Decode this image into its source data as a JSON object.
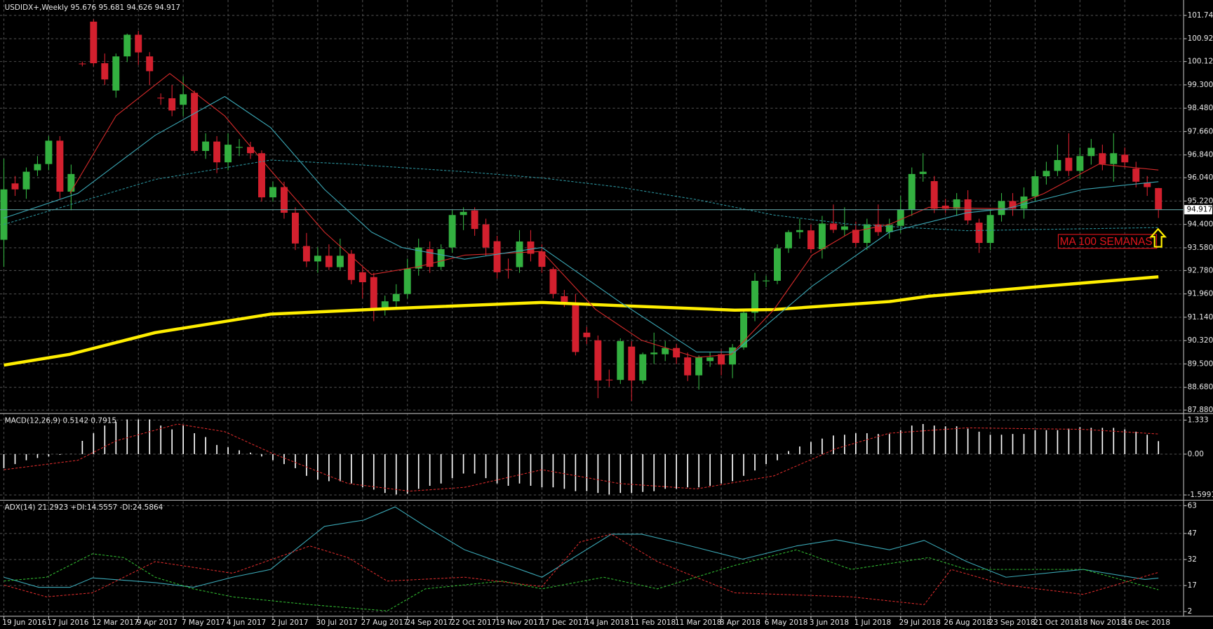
{
  "chart_data": {
    "type": "candlestick",
    "title": "USDIDX+,Weekly  95.676 95.681 94.626 94.917",
    "x_labels": [
      "19 Jun 2016",
      "17 Jul 2016",
      "12 Mar 2017",
      "9 Apr 2017",
      "7 May 2017",
      "4 Jun 2017",
      "2 Jul 2017",
      "30 Jul 2017",
      "27 Aug 2017",
      "24 Sep 2017",
      "22 Oct 2017",
      "19 Nov 2017",
      "17 Dec 2017",
      "14 Jan 2018",
      "11 Feb 2018",
      "11 Mar 2018",
      "8 Apr 2018",
      "6 May 2018",
      "3 Jun 2018",
      "1 Jul 2018",
      "29 Jul 2018",
      "26 Aug 2018",
      "23 Sep 2018",
      "21 Oct 2018",
      "18 Nov 2018",
      "16 Dec 2018"
    ],
    "ylim": [
      87.8,
      102.28
    ],
    "yticks": [
      {
        "value": 101.74,
        "label": "101.740"
      },
      {
        "value": 100.92,
        "label": "100.920"
      },
      {
        "value": 100.12,
        "label": "100.120"
      },
      {
        "value": 99.3,
        "label": "99.300"
      },
      {
        "value": 98.48,
        "label": "98.480"
      },
      {
        "value": 97.66,
        "label": "97.660"
      },
      {
        "value": 96.84,
        "label": "96.840"
      },
      {
        "value": 96.04,
        "label": "96.040"
      },
      {
        "value": 95.22,
        "label": "95.220"
      },
      {
        "value": 94.4,
        "label": "94.400"
      },
      {
        "value": 93.58,
        "label": "93.580"
      },
      {
        "value": 92.78,
        "label": "92.780"
      },
      {
        "value": 91.96,
        "label": "91.960"
      },
      {
        "value": 91.14,
        "label": "91.140"
      },
      {
        "value": 90.32,
        "label": "90.320"
      },
      {
        "value": 89.5,
        "label": "89.500"
      },
      {
        "value": 88.68,
        "label": "88.680"
      },
      {
        "value": 87.88,
        "label": "87.880"
      }
    ],
    "grid": true,
    "up_color": "#33b040",
    "down_color": "#d3202e",
    "candles": [
      [
        93.86,
        96.71,
        92.91,
        95.63
      ],
      [
        95.84,
        96.1,
        95.4,
        95.63
      ],
      [
        95.63,
        96.4,
        95.3,
        96.25
      ],
      [
        96.3,
        96.8,
        96.1,
        96.52
      ],
      [
        96.52,
        97.5,
        96.3,
        97.34
      ],
      [
        97.34,
        97.5,
        95.3,
        95.55
      ],
      [
        95.55,
        96.5,
        94.9,
        96.17
      ],
      [
        100.05,
        100.12,
        99.95,
        100.03
      ],
      [
        101.52,
        101.6,
        99.95,
        100.06
      ],
      [
        100.06,
        100.4,
        99.3,
        99.49
      ],
      [
        99.1,
        100.4,
        98.85,
        100.3
      ],
      [
        100.3,
        101.1,
        100.1,
        101.06
      ],
      [
        101.06,
        101.2,
        100.0,
        100.44
      ],
      [
        100.3,
        100.45,
        99.3,
        99.78
      ],
      [
        98.85,
        99.0,
        98.6,
        98.83
      ],
      [
        98.83,
        99.3,
        98.2,
        98.4
      ],
      [
        98.6,
        99.6,
        98.2,
        98.97
      ],
      [
        99.02,
        99.1,
        96.9,
        96.98
      ],
      [
        96.98,
        97.6,
        96.7,
        97.31
      ],
      [
        97.31,
        97.5,
        96.2,
        96.58
      ],
      [
        96.58,
        97.6,
        96.3,
        97.2
      ],
      [
        97.1,
        97.4,
        96.8,
        97.12
      ],
      [
        97.12,
        97.3,
        96.7,
        96.9
      ],
      [
        96.9,
        97.0,
        95.2,
        95.35
      ],
      [
        95.35,
        95.9,
        95.2,
        95.71
      ],
      [
        95.71,
        95.9,
        94.6,
        94.81
      ],
      [
        94.81,
        95.0,
        93.5,
        93.73
      ],
      [
        93.64,
        94.1,
        92.9,
        93.1
      ],
      [
        93.1,
        93.6,
        92.7,
        93.3
      ],
      [
        93.3,
        93.7,
        92.8,
        92.9
      ],
      [
        92.9,
        93.9,
        92.8,
        93.3
      ],
      [
        93.37,
        93.5,
        92.3,
        92.45
      ],
      [
        92.72,
        92.9,
        91.8,
        92.37
      ],
      [
        92.55,
        92.7,
        91.0,
        91.42
      ],
      [
        91.42,
        91.9,
        91.2,
        91.7
      ],
      [
        91.7,
        92.3,
        91.5,
        91.96
      ],
      [
        91.96,
        93.2,
        91.8,
        92.85
      ],
      [
        92.85,
        93.9,
        92.6,
        93.59
      ],
      [
        93.53,
        93.8,
        92.7,
        92.91
      ],
      [
        92.91,
        93.7,
        92.8,
        93.53
      ],
      [
        93.59,
        94.9,
        93.4,
        94.73
      ],
      [
        94.73,
        95.0,
        94.2,
        94.84
      ],
      [
        94.89,
        95.0,
        94.0,
        94.24
      ],
      [
        94.4,
        94.6,
        93.3,
        93.59
      ],
      [
        93.81,
        94.0,
        92.5,
        92.72
      ],
      [
        92.83,
        93.2,
        92.5,
        92.81
      ],
      [
        92.9,
        94.2,
        92.7,
        93.8
      ],
      [
        93.8,
        94.2,
        93.1,
        93.37
      ],
      [
        93.45,
        93.7,
        92.7,
        92.91
      ],
      [
        92.83,
        92.9,
        91.8,
        91.96
      ],
      [
        91.88,
        92.1,
        91.5,
        91.68
      ],
      [
        91.63,
        91.96,
        89.8,
        89.92
      ],
      [
        90.6,
        90.8,
        90.2,
        90.44
      ],
      [
        90.33,
        90.5,
        88.3,
        88.92
      ],
      [
        88.95,
        89.3,
        88.7,
        88.94
      ],
      [
        88.94,
        90.4,
        88.8,
        90.3
      ],
      [
        90.11,
        90.3,
        88.2,
        88.92
      ],
      [
        88.92,
        89.9,
        88.8,
        89.84
      ],
      [
        89.84,
        90.6,
        89.5,
        89.9
      ],
      [
        89.84,
        90.3,
        89.6,
        90.06
      ],
      [
        90.06,
        90.2,
        89.5,
        89.73
      ],
      [
        89.73,
        89.9,
        88.9,
        89.1
      ],
      [
        89.1,
        89.8,
        88.6,
        89.73
      ],
      [
        89.6,
        89.9,
        89.4,
        89.73
      ],
      [
        89.84,
        90.0,
        89.1,
        89.48
      ],
      [
        89.48,
        90.2,
        89.0,
        90.08
      ],
      [
        90.08,
        91.4,
        90.0,
        91.3
      ],
      [
        91.3,
        92.7,
        91.0,
        92.42
      ],
      [
        92.42,
        92.6,
        92.2,
        92.43
      ],
      [
        92.42,
        93.7,
        92.3,
        93.56
      ],
      [
        93.56,
        94.2,
        93.4,
        94.13
      ],
      [
        94.13,
        94.6,
        93.9,
        94.2
      ],
      [
        94.19,
        94.4,
        93.4,
        93.53
      ],
      [
        93.53,
        94.7,
        93.2,
        94.43
      ],
      [
        94.43,
        95.1,
        94.1,
        94.21
      ],
      [
        94.21,
        95.0,
        94.0,
        94.33
      ],
      [
        94.21,
        94.5,
        93.6,
        93.75
      ],
      [
        93.75,
        94.6,
        93.5,
        94.4
      ],
      [
        94.4,
        95.1,
        94.0,
        94.13
      ],
      [
        94.13,
        94.6,
        93.9,
        94.38
      ],
      [
        94.35,
        95.4,
        94.1,
        94.92
      ],
      [
        94.92,
        96.4,
        94.7,
        96.17
      ],
      [
        96.17,
        96.9,
        95.9,
        96.25
      ],
      [
        95.92,
        96.1,
        94.8,
        94.95
      ],
      [
        95.06,
        95.3,
        94.8,
        94.95
      ],
      [
        94.95,
        95.5,
        94.7,
        95.28
      ],
      [
        95.28,
        95.6,
        94.4,
        94.54
      ],
      [
        94.46,
        94.6,
        93.4,
        93.75
      ],
      [
        93.75,
        94.9,
        93.5,
        94.73
      ],
      [
        94.73,
        95.5,
        94.5,
        95.22
      ],
      [
        95.22,
        95.5,
        94.7,
        94.95
      ],
      [
        94.95,
        95.7,
        94.6,
        95.38
      ],
      [
        95.38,
        96.3,
        95.2,
        96.09
      ],
      [
        96.09,
        96.6,
        95.8,
        96.28
      ],
      [
        96.28,
        97.2,
        96.1,
        96.66
      ],
      [
        96.74,
        97.6,
        96.1,
        96.28
      ],
      [
        96.28,
        97.1,
        96.0,
        96.8
      ],
      [
        96.8,
        97.4,
        96.5,
        97.09
      ],
      [
        96.9,
        97.2,
        96.3,
        96.52
      ],
      [
        96.52,
        97.6,
        95.9,
        96.9
      ],
      [
        96.85,
        97.1,
        96.4,
        96.58
      ],
      [
        96.36,
        96.6,
        95.7,
        95.9
      ],
      [
        95.87,
        96.1,
        95.4,
        95.71
      ],
      [
        95.676,
        95.681,
        94.626,
        94.917
      ]
    ],
    "last_price": 94.917,
    "last_price_color": "#5f9ea0",
    "series": [
      {
        "color": "#ffee00",
        "width": 4,
        "dash": false,
        "x": [
          0,
          5.9,
          13.5,
          23.8,
          34.2,
          48.0,
          54.9,
          65.2,
          68.7,
          79.0,
          82.5,
          92.8,
          103
        ],
        "values": [
          89.46,
          89.84,
          90.6,
          91.25,
          91.44,
          91.66,
          91.55,
          91.39,
          91.41,
          91.69,
          91.88,
          92.23,
          92.56
        ]
      },
      {
        "color": "#d42a2a",
        "width": 1,
        "dash": false,
        "x": [
          5.9,
          10.0,
          14.8,
          19.7,
          23.8,
          28.6,
          32.8,
          36.9,
          41.1,
          48.0,
          52.8,
          56.9,
          61.8,
          64.9,
          68.7,
          72.1,
          75.6,
          79.0,
          82.5,
          89.4,
          92.8,
          97.7,
          103
        ],
        "values": [
          95.49,
          98.21,
          99.7,
          98.21,
          96.3,
          94.13,
          92.64,
          92.91,
          93.32,
          93.45,
          91.41,
          90.33,
          89.73,
          89.84,
          91.41,
          93.32,
          94.13,
          94.4,
          95.0,
          94.95,
          95.49,
          96.52,
          96.31
        ]
      },
      {
        "color": "#3aa6b4",
        "width": 1,
        "dash": false,
        "x": [
          0,
          6.6,
          13.5,
          19.7,
          23.8,
          28.6,
          32.8,
          35.5,
          41.1,
          48.0,
          54.9,
          61.8,
          65.2,
          72.1,
          79.0,
          85.9,
          89.4,
          96.3,
          103
        ],
        "values": [
          94.62,
          95.49,
          97.53,
          98.89,
          97.8,
          95.63,
          94.13,
          93.59,
          93.18,
          93.59,
          91.69,
          89.92,
          89.92,
          92.23,
          94.13,
          94.81,
          94.95,
          95.63,
          95.9
        ]
      },
      {
        "color": "#2a8f99",
        "width": 1,
        "dash": true,
        "x": [
          0,
          13.5,
          23.8,
          30.7,
          41.1,
          48.0,
          54.9,
          61.8,
          68.7,
          75.6,
          85.9,
          103
        ],
        "values": [
          94.4,
          95.98,
          96.66,
          96.52,
          96.25,
          96.03,
          95.71,
          95.27,
          94.73,
          94.4,
          94.18,
          94.29
        ]
      }
    ],
    "annotation": "MA 100 SEMANAS",
    "indicators": [
      {
        "type": "macd",
        "title": "MACD(12,26,9) 0.5142 0.7915",
        "ylim": [
          -1.758,
          1.515
        ],
        "yticks": [
          1.333,
          {
            "value": 0,
            "label": "0.00"
          },
          -1.5991
        ],
        "histogram_color": "#ffffff",
        "histogram": [
          -0.55,
          -0.39,
          -0.24,
          -0.15,
          -0.09,
          -0.03,
          0.01,
          0.52,
          0.82,
          1.12,
          1.27,
          1.36,
          1.36,
          1.36,
          1.12,
          0.97,
          1.12,
          0.82,
          0.67,
          0.36,
          0.27,
          0.15,
          0.06,
          -0.09,
          -0.24,
          -0.39,
          -0.55,
          -0.85,
          -1.0,
          -1.06,
          -1.06,
          -1.15,
          -1.3,
          -1.39,
          -1.52,
          -1.58,
          -1.55,
          -1.36,
          -1.24,
          -1.15,
          -0.94,
          -0.76,
          -0.76,
          -0.94,
          -1.15,
          -1.24,
          -1.15,
          -1.24,
          -1.3,
          -1.3,
          -1.36,
          -1.45,
          -1.45,
          -1.52,
          -1.58,
          -1.52,
          -1.52,
          -1.48,
          -1.45,
          -1.36,
          -1.36,
          -1.3,
          -1.3,
          -1.24,
          -1.15,
          -1.06,
          -0.85,
          -0.64,
          -0.39,
          -0.24,
          0.12,
          0.3,
          0.48,
          0.61,
          0.73,
          0.76,
          0.82,
          0.82,
          0.79,
          0.79,
          0.94,
          1.12,
          1.18,
          1.12,
          1.09,
          1.09,
          1.0,
          0.88,
          0.76,
          0.76,
          0.79,
          0.79,
          0.94,
          0.94,
          0.94,
          1.0,
          1.06,
          1.03,
          1.03,
          1.03,
          0.97,
          0.88,
          0.76,
          0.51
        ],
        "series": [
          {
            "color": "#d42a2a",
            "width": 1,
            "dash": true,
            "x": [
              0,
              6.6,
              10.0,
              15.5,
              19.7,
              23.8,
              30.7,
              36.2,
              41.1,
              48.0,
              54.9,
              61.8,
              68.7,
              74.2,
              79.0,
              85.9,
              96.3,
              103
            ],
            "values": [
              -0.61,
              -0.24,
              0.52,
              1.18,
              0.88,
              0.06,
              -1.15,
              -1.45,
              -1.3,
              -0.61,
              -1.15,
              -1.36,
              -0.85,
              0.21,
              0.82,
              1.03,
              0.97,
              0.79
            ]
          }
        ]
      },
      {
        "type": "adx",
        "title": "ADX(14) 21.2923 +DI:14.5557 -DI:24.5864",
        "ylim": [
          0,
          65.5
        ],
        "yticks": [
          63,
          47,
          32,
          17,
          2
        ],
        "series": [
          {
            "color": "#3aa6b4",
            "width": 1,
            "dash": false,
            "x": [
              0,
              3.1,
              5.9,
              7.9,
              13.5,
              16.9,
              20.4,
              23.8,
              28.6,
              32.1,
              34.9,
              37.6,
              41.1,
              48.0,
              54.2,
              56.9,
              60.4,
              65.9,
              70.7,
              74.2,
              79.0,
              82.1,
              85.9,
              89.4,
              96.3,
              101.8,
              103
            ],
            "values": [
              21.8,
              16.0,
              16.0,
              21.4,
              18.7,
              16.0,
              21.8,
              26.3,
              51.1,
              54.7,
              62.3,
              51.1,
              37.6,
              21.8,
              46.6,
              46.6,
              41.2,
              32.2,
              39.8,
              43.4,
              37.6,
              43.0,
              30.8,
              21.8,
              26.3,
              20.5,
              21.3
            ]
          },
          {
            "color": "#2fb52f",
            "width": 1,
            "dash": true,
            "x": [
              0,
              3.8,
              7.9,
              10.7,
              13.5,
              16.9,
              20.4,
              27.3,
              34.2,
              37.6,
              44.5,
              48.0,
              53.5,
              58.3,
              65.2,
              70.7,
              75.6,
              82.5,
              85.9,
              89.4,
              96.3,
              103
            ],
            "values": [
              19.6,
              21.8,
              35.3,
              33.1,
              21.8,
              15.1,
              10.5,
              6.0,
              2.4,
              15.1,
              19.6,
              15.1,
              21.8,
              15.1,
              28.6,
              37.6,
              26.3,
              33.1,
              26.3,
              26.3,
              26.3,
              14.6
            ]
          },
          {
            "color": "#d42a2a",
            "width": 1,
            "dash": true,
            "x": [
              0,
              3.8,
              7.9,
              13.5,
              20.4,
              27.3,
              30.7,
              34.2,
              41.1,
              48.0,
              51.4,
              54.2,
              58.3,
              65.2,
              75.6,
              82.1,
              84.5,
              89.4,
              96.3,
              103
            ],
            "values": [
              17.3,
              10.5,
              12.8,
              30.8,
              24.1,
              39.8,
              33.1,
              19.6,
              21.8,
              16.4,
              42.1,
              46.6,
              30.8,
              12.8,
              10.5,
              6.0,
              26.3,
              17.3,
              11.9,
              24.6
            ]
          }
        ]
      }
    ]
  }
}
